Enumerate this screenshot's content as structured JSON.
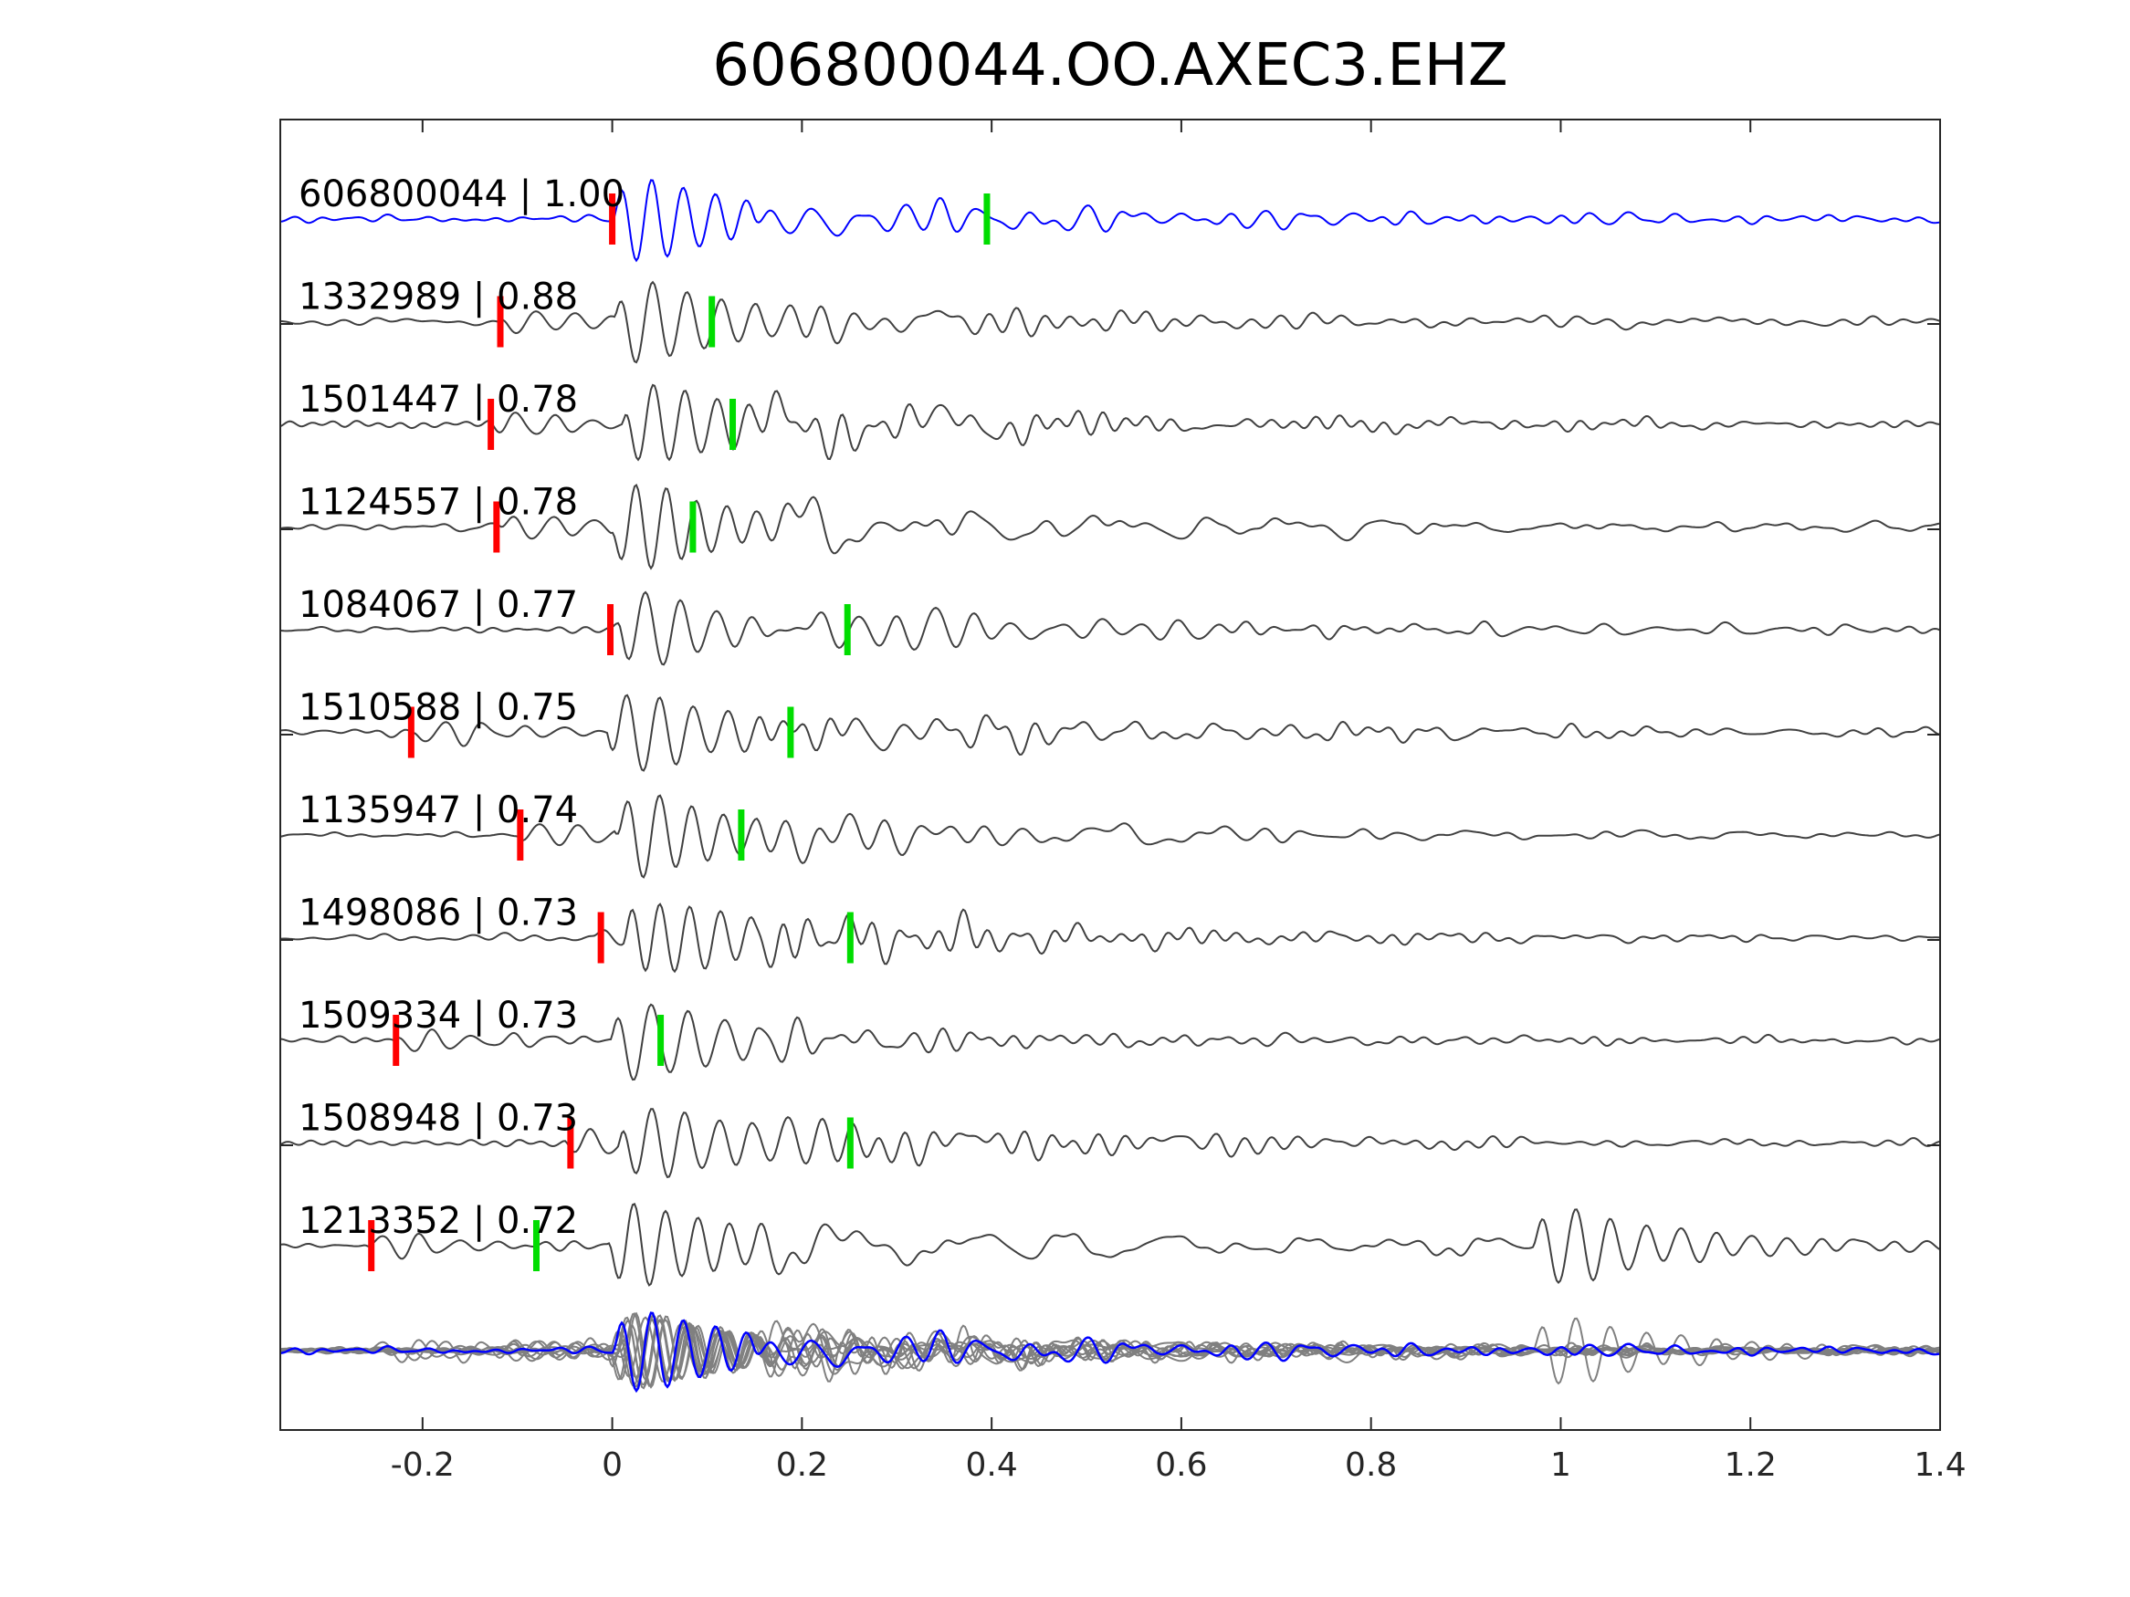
{
  "chart_data": {
    "type": "line",
    "title": "606800044.OO.AXEC3.EHZ",
    "xlabel": "",
    "ylabel": "",
    "xlim": [
      -0.35,
      1.4
    ],
    "xticks": [
      -0.2,
      0,
      0.2,
      0.4,
      0.6,
      0.8,
      1,
      1.2,
      1.4
    ],
    "xtick_labels": [
      "-0.2",
      "0",
      "0.2",
      "0.4",
      "0.6",
      "0.8",
      "1",
      "1.2",
      "1.4"
    ],
    "grid": false,
    "colors": {
      "reference": "#0000ff",
      "neighbor": "#404040",
      "stack": "#808080",
      "p_pick": "#ff0000",
      "s_pick": "#00dd00"
    },
    "series": [
      {
        "name": "606800044 | 1.00",
        "p_pick": 0.0,
        "s_pick": 0.395,
        "reference": true
      },
      {
        "name": "1332989 | 0.88",
        "p_pick": -0.118,
        "s_pick": 0.105
      },
      {
        "name": "1501447 | 0.78",
        "p_pick": -0.128,
        "s_pick": 0.127
      },
      {
        "name": "1124557 | 0.78",
        "p_pick": -0.122,
        "s_pick": 0.085
      },
      {
        "name": "1084067 | 0.77",
        "p_pick": -0.002,
        "s_pick": 0.248
      },
      {
        "name": "1510588 | 0.75",
        "p_pick": -0.212,
        "s_pick": 0.188
      },
      {
        "name": "1135947 | 0.74",
        "p_pick": -0.097,
        "s_pick": 0.136
      },
      {
        "name": "1498086 | 0.73",
        "p_pick": -0.012,
        "s_pick": 0.251
      },
      {
        "name": "1509334 | 0.73",
        "p_pick": -0.228,
        "s_pick": 0.051
      },
      {
        "name": "1508948 | 0.73",
        "p_pick": -0.044,
        "s_pick": 0.251
      },
      {
        "name": "1213352 | 0.72",
        "p_pick": -0.254,
        "s_pick": -0.08,
        "late_arrival": 0.97
      }
    ]
  }
}
